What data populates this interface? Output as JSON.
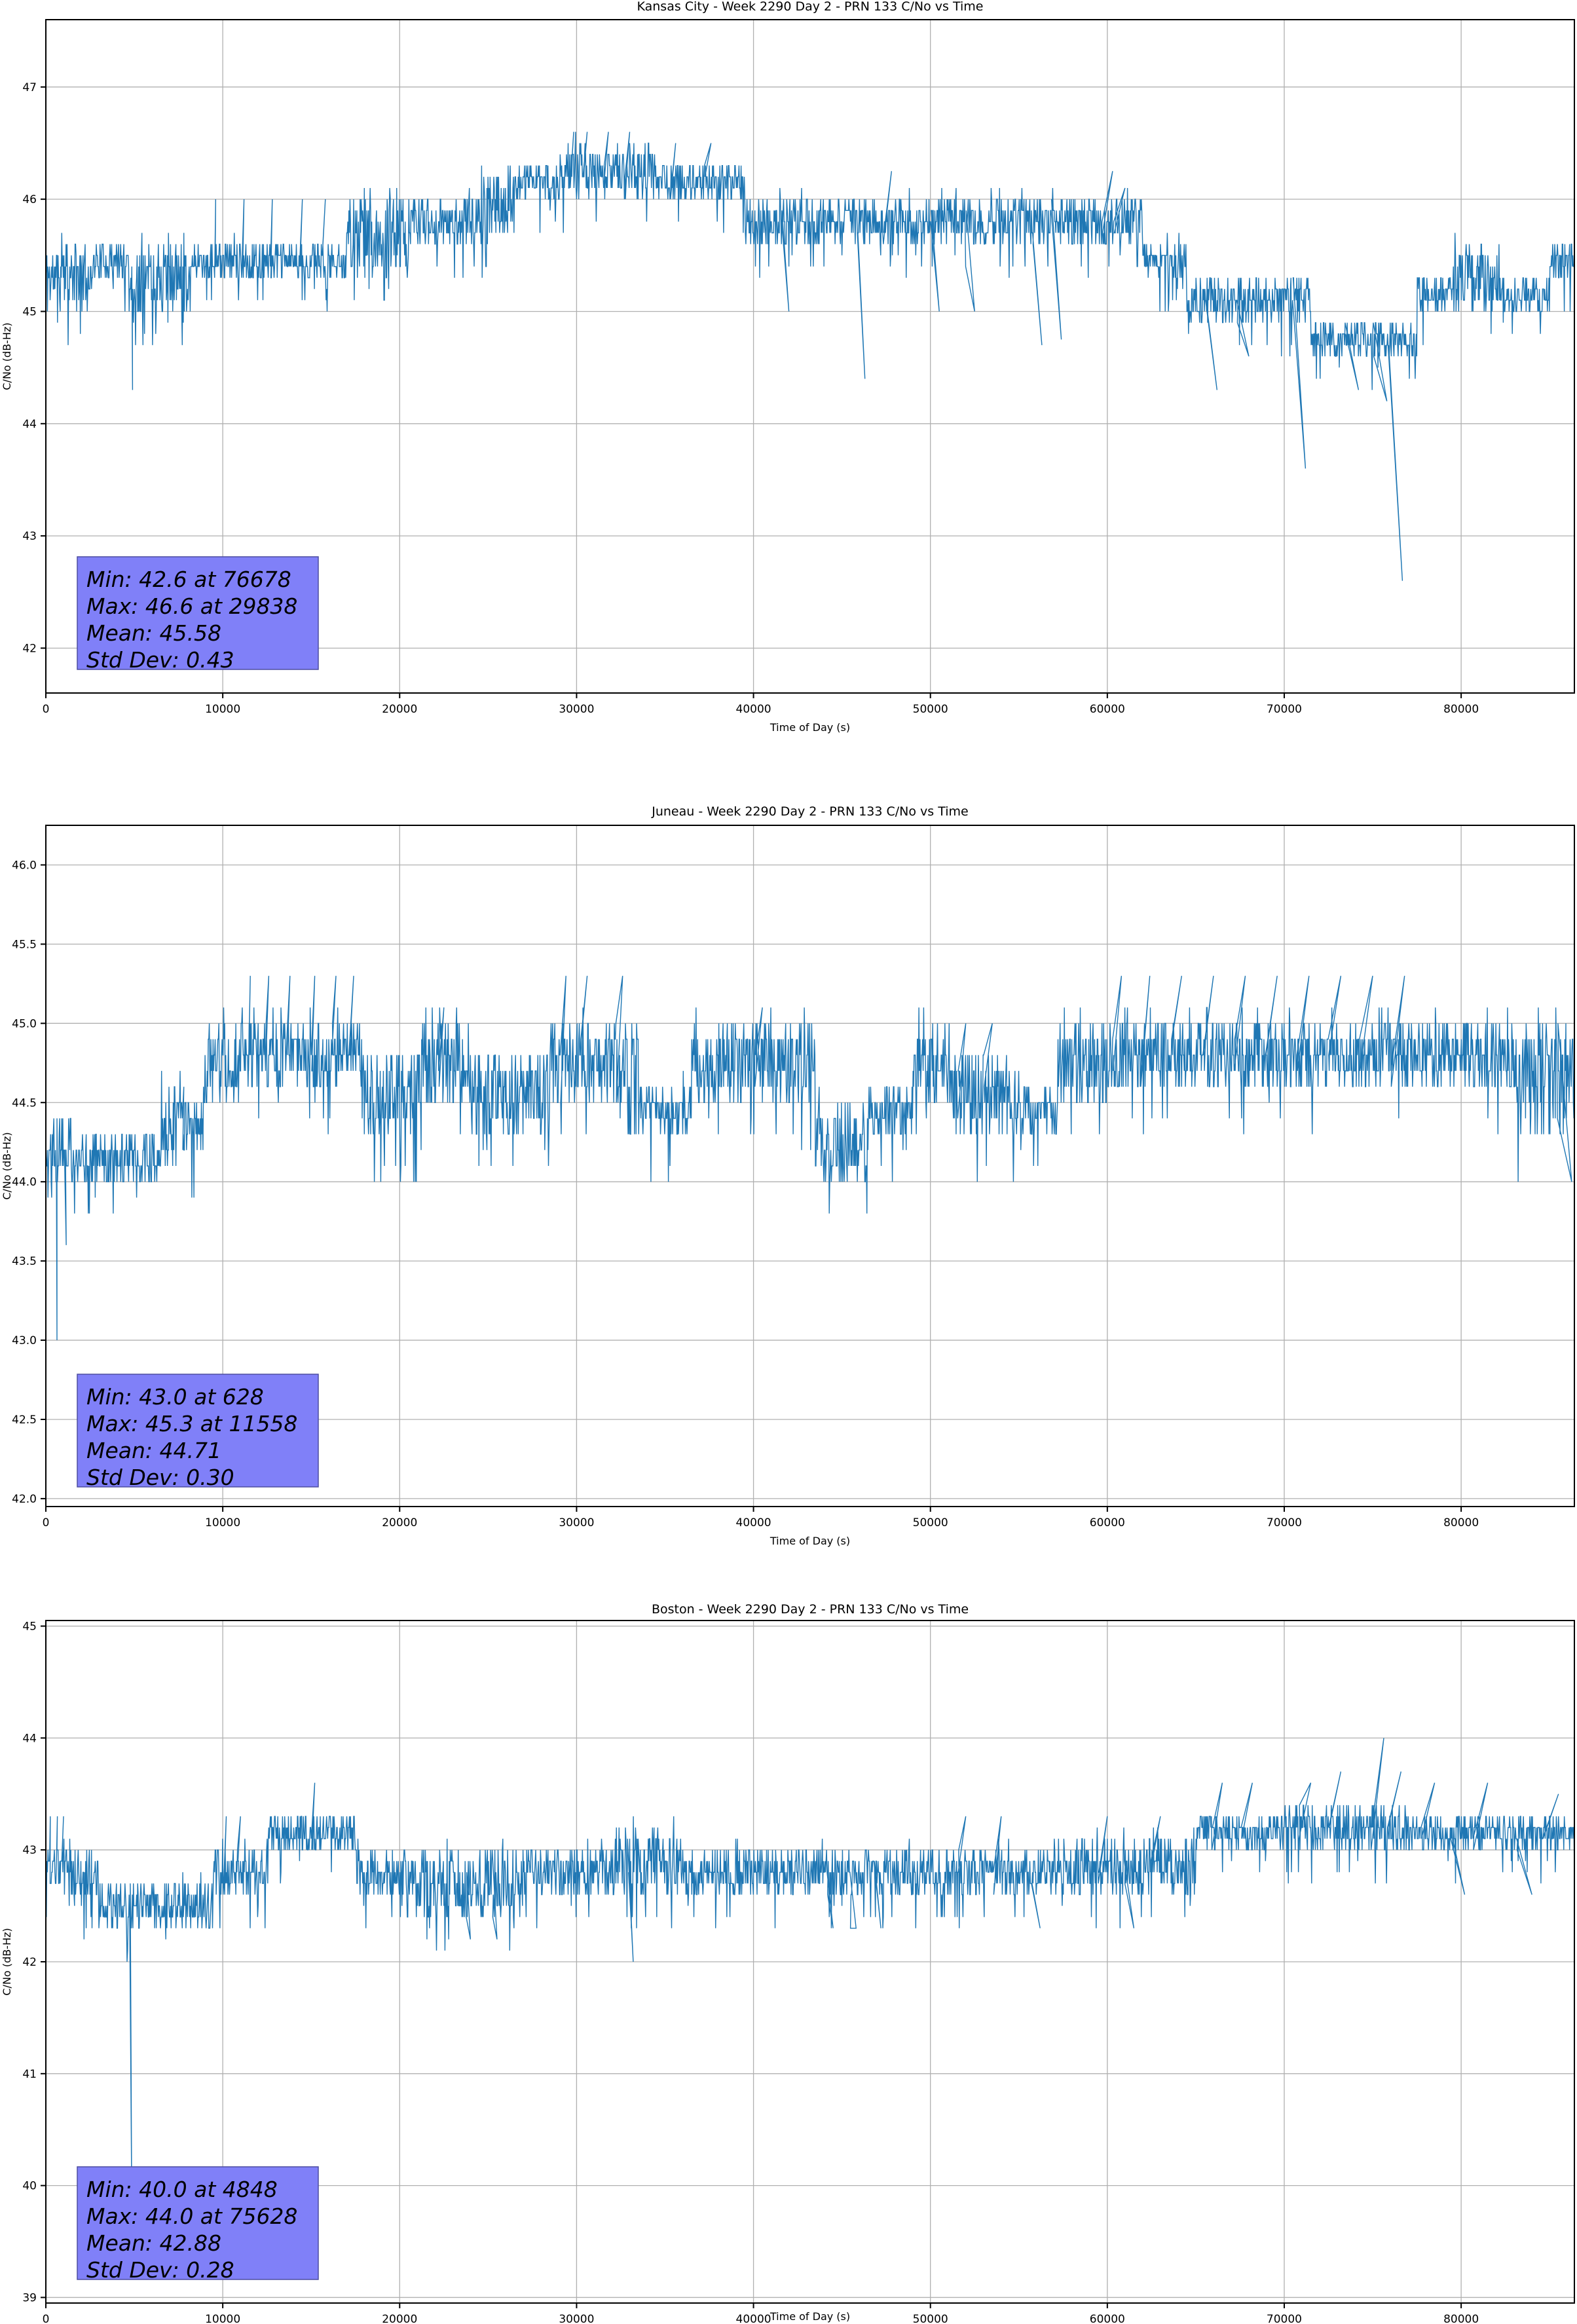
{
  "page": {
    "background": "#ffffff",
    "line_color": "#1f77b4",
    "grid_color": "#b0b0b0",
    "spine_color": "#000000",
    "stats_box_fill": "#8080f8",
    "stats_box_edge": "#4d4da0"
  },
  "chart_data": [
    {
      "type": "line",
      "title": "Kansas City - Week 2290 Day 2 - PRN 133 C/No vs Time",
      "xlabel": "Time of Day (s)",
      "ylabel": "C/No (dB-Hz)",
      "legend": "none",
      "grid": true,
      "xlim": [
        0,
        86400
      ],
      "ylim": [
        41.6,
        47.6
      ],
      "xticks": [
        0,
        10000,
        20000,
        30000,
        40000,
        50000,
        60000,
        70000,
        80000
      ],
      "xtick_labels": [
        "0",
        "10000",
        "20000",
        "30000",
        "40000",
        "50000",
        "60000",
        "70000",
        "80000"
      ],
      "yticks": [
        42,
        43,
        44,
        45,
        46,
        47
      ],
      "ytick_labels": [
        "42",
        "43",
        "44",
        "45",
        "46",
        "47"
      ],
      "stats": {
        "min": 42.6,
        "min_at": 76678,
        "max": 46.6,
        "max_at": 29838,
        "mean": 45.58,
        "std_dev": 0.43,
        "lines": [
          "Min: 42.6 at 76678",
          "Max: 46.6 at 29838",
          "Mean: 45.58",
          "Std Dev: 0.43"
        ]
      },
      "segments": [
        [
          0,
          2500,
          45.0,
          45.6
        ],
        [
          2500,
          4700,
          45.3,
          45.6
        ],
        [
          4700,
          5300,
          44.9,
          45.5
        ],
        [
          5300,
          8200,
          45.0,
          45.6
        ],
        [
          8200,
          17000,
          45.3,
          45.6
        ],
        [
          17000,
          20500,
          45.3,
          46.0
        ],
        [
          20500,
          24500,
          45.6,
          46.0
        ],
        [
          24500,
          26500,
          45.6,
          46.3
        ],
        [
          26500,
          29000,
          46.0,
          46.3
        ],
        [
          29000,
          34500,
          46.0,
          46.5
        ],
        [
          34500,
          39500,
          46.0,
          46.3
        ],
        [
          39500,
          62000,
          45.6,
          46.0
        ],
        [
          62000,
          64500,
          45.3,
          45.6
        ],
        [
          64500,
          71500,
          44.9,
          45.3
        ],
        [
          71500,
          77500,
          44.6,
          44.9
        ],
        [
          77500,
          79500,
          45.0,
          45.3
        ],
        [
          79500,
          82200,
          45.0,
          45.6
        ],
        [
          82200,
          85000,
          45.0,
          45.3
        ],
        [
          85000,
          86400,
          45.3,
          45.6
        ]
      ],
      "spikes": [
        [
          4900,
          44.3
        ],
        [
          9600,
          46.0
        ],
        [
          11200,
          46.0
        ],
        [
          12800,
          46.0
        ],
        [
          14500,
          46.0
        ],
        [
          15800,
          46.0
        ],
        [
          29838,
          46.6
        ],
        [
          30600,
          46.6
        ],
        [
          31800,
          46.6
        ],
        [
          33000,
          46.6
        ],
        [
          35600,
          46.5
        ],
        [
          37600,
          46.5
        ],
        [
          42000,
          45.0
        ],
        [
          46300,
          44.4
        ],
        [
          47800,
          46.25
        ],
        [
          50500,
          45.0
        ],
        [
          52500,
          45.0
        ],
        [
          56300,
          44.7
        ],
        [
          57400,
          44.75
        ],
        [
          60300,
          46.25
        ],
        [
          61000,
          46.1
        ],
        [
          66200,
          44.3
        ],
        [
          68000,
          44.6
        ],
        [
          71200,
          43.6
        ],
        [
          74200,
          44.3
        ],
        [
          75800,
          44.2
        ],
        [
          76678,
          42.6
        ]
      ],
      "layout": {
        "fig_h": 1183,
        "axes_left": 70,
        "axes_right": 2404,
        "axes_top": 30,
        "axes_bottom": 1058,
        "title_y": 16,
        "stats_x": 118,
        "stats_w": 368,
        "stats_h": 172,
        "stats_gap": 36
      },
      "seed": 11
    },
    {
      "type": "line",
      "title": "Juneau - Week 2290 Day 2 - PRN 133 C/No vs Time",
      "xlabel": "Time of Day (s)",
      "ylabel": "C/No (dB-Hz)",
      "legend": "none",
      "grid": true,
      "xlim": [
        0,
        86400
      ],
      "ylim": [
        41.95,
        46.25
      ],
      "xticks": [
        0,
        10000,
        20000,
        30000,
        40000,
        50000,
        60000,
        70000,
        80000
      ],
      "xtick_labels": [
        "0",
        "10000",
        "20000",
        "30000",
        "40000",
        "50000",
        "60000",
        "70000",
        "80000"
      ],
      "yticks": [
        42.0,
        42.5,
        43.0,
        43.5,
        44.0,
        44.5,
        45.0,
        45.5,
        46.0
      ],
      "ytick_labels": [
        "42.0",
        "42.5",
        "43.0",
        "43.5",
        "44.0",
        "44.5",
        "45.0",
        "45.5",
        "46.0"
      ],
      "stats": {
        "min": 43.0,
        "min_at": 628,
        "max": 45.3,
        "max_at": 11558,
        "mean": 44.71,
        "std_dev": 0.3,
        "lines": [
          "Min: 43.0 at 628",
          "Max: 45.3 at 11558",
          "Mean: 44.71",
          "Std Dev: 0.30"
        ]
      },
      "segments": [
        [
          0,
          1500,
          44.0,
          44.4
        ],
        [
          1500,
          6500,
          44.0,
          44.3
        ],
        [
          6500,
          9000,
          44.1,
          44.6
        ],
        [
          9000,
          11500,
          44.5,
          45.0
        ],
        [
          11500,
          18000,
          44.6,
          45.0
        ],
        [
          18000,
          21000,
          44.3,
          44.8
        ],
        [
          21000,
          24000,
          44.5,
          45.0
        ],
        [
          24000,
          28500,
          44.3,
          44.8
        ],
        [
          28500,
          33500,
          44.5,
          45.0
        ],
        [
          33500,
          36500,
          44.3,
          44.6
        ],
        [
          36500,
          43500,
          44.5,
          45.0
        ],
        [
          43500,
          46500,
          44.0,
          44.5
        ],
        [
          46500,
          49000,
          44.3,
          44.6
        ],
        [
          49000,
          51200,
          44.5,
          45.0
        ],
        [
          51200,
          54500,
          44.3,
          44.8
        ],
        [
          54500,
          57200,
          44.3,
          44.6
        ],
        [
          57200,
          60000,
          44.5,
          45.0
        ],
        [
          60000,
          78500,
          44.6,
          45.0
        ],
        [
          78500,
          83000,
          44.6,
          45.0
        ],
        [
          83000,
          86400,
          44.3,
          45.0
        ]
      ],
      "spikes": [
        [
          628,
          43.0
        ],
        [
          1150,
          43.6
        ],
        [
          7800,
          44.6
        ],
        [
          11558,
          45.3
        ],
        [
          12600,
          45.3
        ],
        [
          13800,
          45.3
        ],
        [
          15200,
          45.3
        ],
        [
          16400,
          45.3
        ],
        [
          17400,
          45.3
        ],
        [
          22500,
          45.1
        ],
        [
          29400,
          45.3
        ],
        [
          30600,
          45.3
        ],
        [
          32600,
          45.3
        ],
        [
          40500,
          45.1
        ],
        [
          52000,
          45.0
        ],
        [
          53500,
          45.0
        ],
        [
          60800,
          45.3
        ],
        [
          62400,
          45.3
        ],
        [
          64200,
          45.3
        ],
        [
          66000,
          45.3
        ],
        [
          67800,
          45.3
        ],
        [
          69600,
          45.3
        ],
        [
          71400,
          45.3
        ],
        [
          73200,
          45.3
        ],
        [
          75000,
          45.3
        ],
        [
          76800,
          45.3
        ],
        [
          86250,
          44.0
        ]
      ],
      "layout": {
        "fig_h": 1183,
        "axes_left": 70,
        "axes_right": 2404,
        "axes_top": 77,
        "axes_bottom": 1117,
        "title_y": 62,
        "stats_x": 118,
        "stats_w": 368,
        "stats_h": 172,
        "stats_gap": 30
      },
      "seed": 22
    },
    {
      "type": "line",
      "title": "Boston - Week 2290 Day 2 - PRN 133 C/No vs Time",
      "xlabel": "Time of Day (s)",
      "ylabel": "C/No (dB-Hz)",
      "legend": "none",
      "grid": true,
      "xlim": [
        0,
        86400
      ],
      "ylim": [
        38.95,
        45.05
      ],
      "xticks": [
        0,
        10000,
        20000,
        30000,
        40000,
        50000,
        60000,
        70000,
        80000
      ],
      "xtick_labels": [
        "0",
        "10000",
        "20000",
        "30000",
        "40000",
        "50000",
        "60000",
        "70000",
        "80000"
      ],
      "yticks": [
        39,
        40,
        41,
        42,
        43,
        44,
        45
      ],
      "ytick_labels": [
        "39",
        "40",
        "41",
        "42",
        "43",
        "44",
        "45"
      ],
      "stats": {
        "min": 40.0,
        "min_at": 4848,
        "max": 44.0,
        "max_at": 75628,
        "mean": 42.88,
        "std_dev": 0.28,
        "lines": [
          "Min: 40.0 at 4848",
          "Max: 44.0 at 75628",
          "Mean: 42.88",
          "Std Dev: 0.28"
        ]
      },
      "segments": [
        [
          0,
          1300,
          42.6,
          43.0
        ],
        [
          1300,
          3000,
          42.5,
          43.0
        ],
        [
          3000,
          9500,
          42.3,
          42.7
        ],
        [
          9500,
          12500,
          42.6,
          43.0
        ],
        [
          12500,
          17500,
          43.0,
          43.3
        ],
        [
          17500,
          21000,
          42.6,
          43.0
        ],
        [
          21000,
          27000,
          42.4,
          43.0
        ],
        [
          27000,
          32000,
          42.6,
          43.0
        ],
        [
          32000,
          35500,
          42.6,
          43.2
        ],
        [
          35500,
          43000,
          42.6,
          43.0
        ],
        [
          43000,
          50000,
          42.6,
          43.0
        ],
        [
          50000,
          58000,
          42.6,
          43.0
        ],
        [
          58000,
          65000,
          42.6,
          43.1
        ],
        [
          65000,
          70000,
          43.0,
          43.3
        ],
        [
          70000,
          77000,
          43.0,
          43.4
        ],
        [
          77000,
          83000,
          43.0,
          43.3
        ],
        [
          83000,
          86400,
          43.0,
          43.3
        ]
      ],
      "spikes": [
        [
          250,
          43.3
        ],
        [
          650,
          43.3
        ],
        [
          1000,
          43.3
        ],
        [
          4848,
          40.0
        ],
        [
          10200,
          43.3
        ],
        [
          11000,
          43.3
        ],
        [
          15200,
          43.6
        ],
        [
          24000,
          42.2
        ],
        [
          25500,
          42.2
        ],
        [
          33200,
          42.0
        ],
        [
          44500,
          42.3
        ],
        [
          45800,
          42.3
        ],
        [
          47200,
          42.3
        ],
        [
          52000,
          43.3
        ],
        [
          54000,
          43.3
        ],
        [
          56200,
          42.3
        ],
        [
          60000,
          43.3
        ],
        [
          61500,
          42.3
        ],
        [
          63000,
          43.3
        ],
        [
          66500,
          43.6
        ],
        [
          68200,
          43.6
        ],
        [
          71500,
          43.6
        ],
        [
          73200,
          43.7
        ],
        [
          75628,
          44.0
        ],
        [
          76600,
          43.7
        ],
        [
          78500,
          43.6
        ],
        [
          80200,
          42.6
        ],
        [
          81500,
          43.6
        ],
        [
          84000,
          42.6
        ],
        [
          85500,
          43.5
        ]
      ],
      "layout": {
        "fig_h": 1182,
        "axes_left": 70,
        "axes_right": 2404,
        "axes_top": 108,
        "axes_bottom": 1150,
        "title_y": 97,
        "stats_x": 118,
        "stats_w": 368,
        "stats_h": 172,
        "stats_gap": 36
      },
      "seed": 33
    }
  ]
}
